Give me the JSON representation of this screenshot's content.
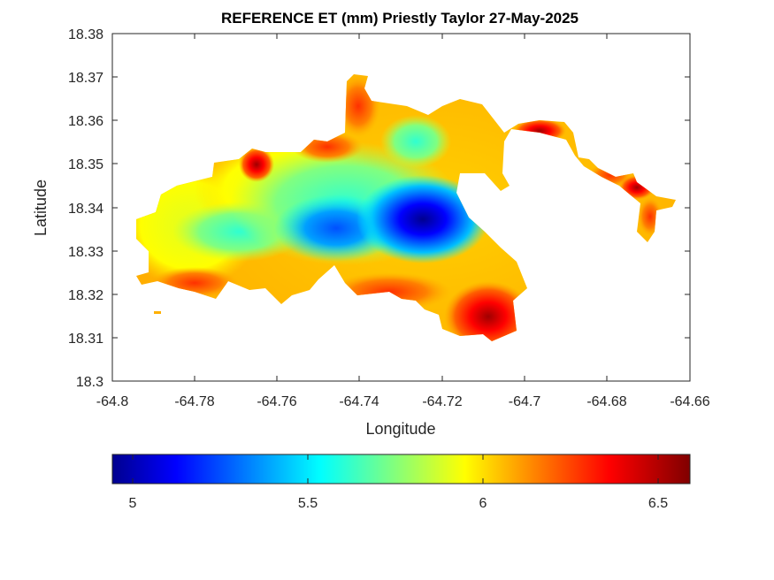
{
  "title": "REFERENCE ET (mm) Priestly Taylor 27-May-2025",
  "xlabel": "Longitude",
  "ylabel": "Latitude",
  "x_ticks": [
    "-64.8",
    "-64.78",
    "-64.76",
    "-64.74",
    "-64.72",
    "-64.7",
    "-64.68",
    "-64.66"
  ],
  "y_ticks": [
    "18.3",
    "18.31",
    "18.32",
    "18.33",
    "18.34",
    "18.35",
    "18.36",
    "18.37",
    "18.38"
  ],
  "colorbar": {
    "colormap": "jet",
    "range": [
      4.94,
      6.59
    ],
    "ticks": [
      "5",
      "5.5",
      "6",
      "6.5"
    ],
    "colors": [
      "#00008f",
      "#0000ff",
      "#00ffff",
      "#ffff00",
      "#ff0000",
      "#800000"
    ]
  },
  "chart_data": {
    "type": "heatmap",
    "title": "REFERENCE ET (mm) Priestly Taylor 27-May-2025",
    "xlabel": "Longitude",
    "ylabel": "Latitude",
    "xlim": [
      -64.8,
      -64.66
    ],
    "ylim": [
      18.3,
      18.38
    ],
    "value_range": [
      4.94,
      6.59
    ],
    "colormap": "jet",
    "regions": [
      {
        "name": "minimum-center",
        "lon": -64.723,
        "lat": 18.3365,
        "value": 4.95
      },
      {
        "name": "low-west",
        "lon": -64.747,
        "lat": 18.3355,
        "value": 5.2
      },
      {
        "name": "interior-west",
        "lon": -64.775,
        "lat": 18.332,
        "value": 5.9
      },
      {
        "name": "north-peak",
        "lon": -64.7655,
        "lat": 18.349,
        "value": 6.4
      },
      {
        "name": "southeast-peak",
        "lon": -64.709,
        "lat": 18.312,
        "value": 6.55
      },
      {
        "name": "east-arm",
        "lon": -64.671,
        "lat": 18.344,
        "value": 6.5
      }
    ]
  }
}
